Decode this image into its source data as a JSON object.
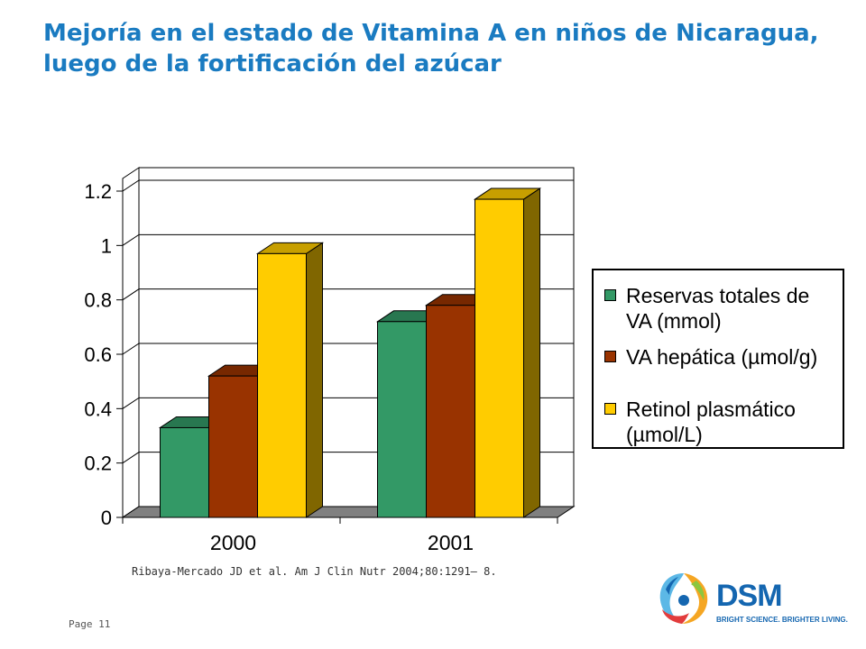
{
  "slide": {
    "title": "Mejoría en el estado de Vitamina A en niños de Nicaragua, luego de la fortificación del azúcar",
    "source": "Ribaya-Mercado JD et al. Am J Clin Nutr 2004;80:1291– 8.",
    "page_label": "Page 11"
  },
  "logo": {
    "word": "DSM",
    "tagline": "BRIGHT SCIENCE. BRIGHTER LIVING."
  },
  "chart_data": {
    "type": "bar",
    "categories": [
      "2000",
      "2001"
    ],
    "series": [
      {
        "name": "Reservas totales de VA (mmol)",
        "values": [
          0.33,
          0.72
        ],
        "color": "#339966"
      },
      {
        "name": "VA hepática (µmol/g)",
        "values": [
          0.52,
          0.78
        ],
        "color": "#993300"
      },
      {
        "name": "Retinol plasmático (µmol/L)",
        "values": [
          0.97,
          1.17
        ],
        "color": "#ffcc00"
      }
    ],
    "ylim": [
      0,
      1.2
    ],
    "yticks": [
      "0",
      "0.2",
      "0.4",
      "0.6",
      "0.8",
      "1",
      "1.2"
    ],
    "grid": true,
    "legend_position": "right",
    "style": "3d-column"
  }
}
